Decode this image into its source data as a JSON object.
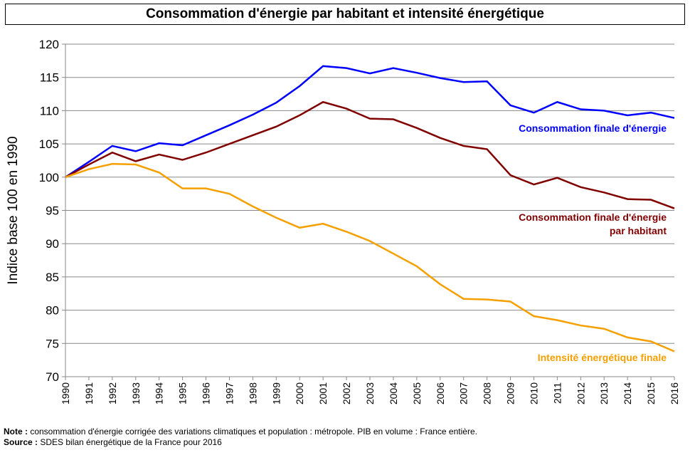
{
  "chart_data": {
    "type": "line",
    "title": "Consommation d'énergie par habitant et intensité énergétique",
    "ylabel": "Indice base 100 en 1990",
    "xlabel": "",
    "ylim": [
      70,
      120
    ],
    "yticks": [
      70,
      75,
      80,
      85,
      90,
      95,
      100,
      105,
      110,
      115,
      120
    ],
    "grid": true,
    "x": [
      1990,
      1991,
      1992,
      1993,
      1994,
      1995,
      1996,
      1997,
      1998,
      1999,
      2000,
      2001,
      2002,
      2003,
      2004,
      2005,
      2006,
      2007,
      2008,
      2009,
      2010,
      2011,
      2012,
      2013,
      2014,
      2015,
      2016
    ],
    "series": [
      {
        "name": "Consommation finale d'énergie",
        "color": "#0000ff",
        "values": [
          100,
          102.3,
          104.7,
          103.9,
          105.1,
          104.8,
          106.3,
          107.8,
          109.4,
          111.2,
          113.7,
          116.7,
          116.4,
          115.6,
          116.4,
          115.7,
          114.9,
          114.3,
          114.4,
          110.8,
          109.7,
          111.3,
          110.2,
          110.0,
          109.3,
          109.7,
          108.9
        ]
      },
      {
        "name": "Consommation finale d'énergie par habitant",
        "label_lines": [
          "Consommation finale d'énergie",
          "par habitant"
        ],
        "color": "#800000",
        "values": [
          100,
          101.9,
          103.7,
          102.4,
          103.4,
          102.6,
          103.7,
          105.0,
          106.3,
          107.6,
          109.3,
          111.3,
          110.3,
          108.8,
          108.7,
          107.4,
          105.9,
          104.7,
          104.2,
          100.3,
          98.9,
          99.9,
          98.5,
          97.7,
          96.7,
          96.6,
          95.3
        ]
      },
      {
        "name": "Intensité énergétique finale",
        "color": "#f5a000",
        "values": [
          100,
          101.2,
          102.0,
          101.9,
          100.7,
          98.3,
          98.3,
          97.5,
          95.6,
          93.9,
          92.4,
          93.0,
          91.8,
          90.4,
          88.5,
          86.6,
          83.9,
          81.7,
          81.6,
          81.3,
          79.1,
          78.5,
          77.7,
          77.2,
          75.9,
          75.3,
          73.8
        ]
      }
    ]
  },
  "footer": {
    "note_label": "Note :",
    "note_text": " consommation d'énergie corrigée des variations climatiques et population : métropole. PIB en volume : France entière.",
    "source_label": "Source :",
    "source_text": " SDES bilan énergétique de la France pour 2016"
  }
}
